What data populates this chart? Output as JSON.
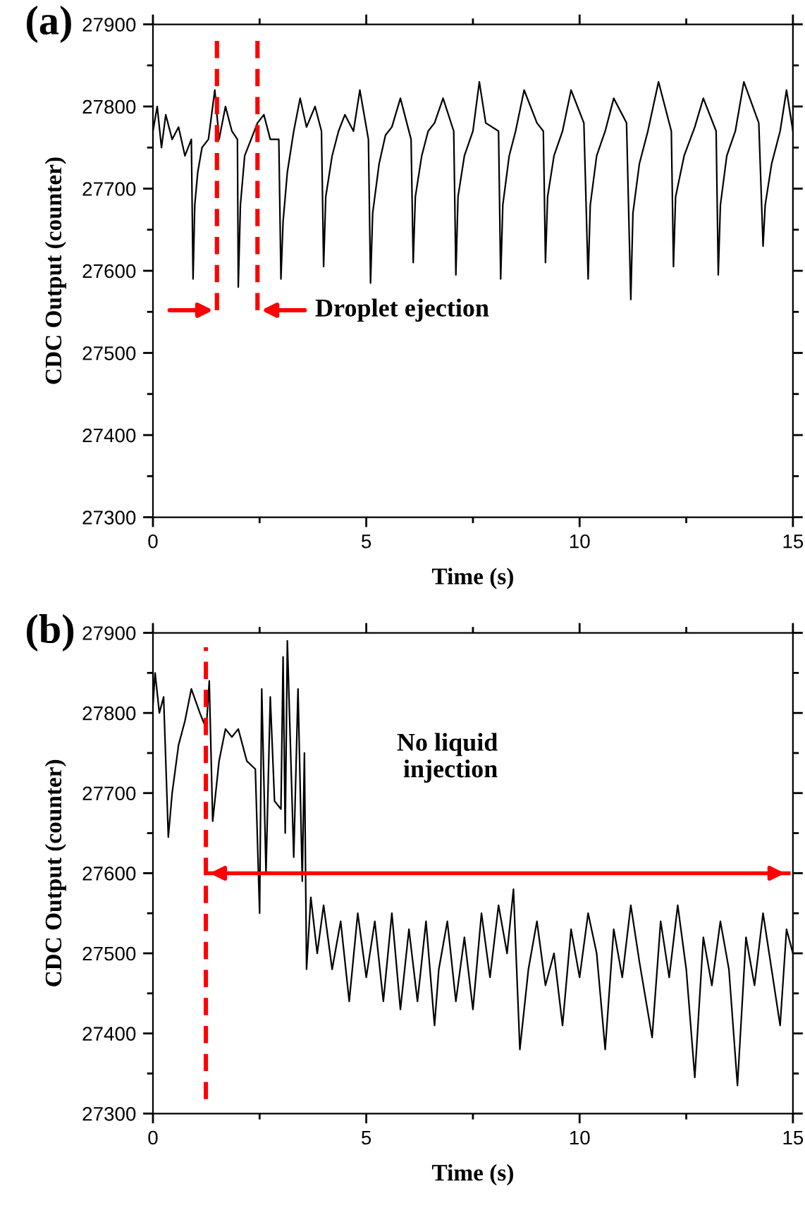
{
  "chart_data": [
    {
      "type": "line",
      "title": "(a)",
      "xlabel": "Time (s)",
      "ylabel": "CDC Output (counter)",
      "xlim": [
        0,
        15
      ],
      "ylim": [
        27300,
        27900
      ],
      "xticks": [
        0,
        {
          "value": 2.5,
          "label": null
        },
        5,
        {
          "value": 7.5,
          "label": null
        },
        10,
        {
          "value": 12.5,
          "label": null
        },
        15
      ],
      "yticks": [
        27300,
        {
          "value": 27350,
          "label": null
        },
        27400,
        {
          "value": 27450,
          "label": null
        },
        27500,
        {
          "value": 27550,
          "label": null
        },
        27600,
        {
          "value": 27650,
          "label": null
        },
        27700,
        {
          "value": 27750,
          "label": null
        },
        27800,
        {
          "value": 27850,
          "label": null
        },
        27900
      ],
      "grid": false,
      "legend": false,
      "series": [
        {
          "color": "#000000",
          "x": [
            0,
            0.1,
            0.2,
            0.3,
            0.45,
            0.6,
            0.75,
            0.9,
            0.94,
            0.98,
            1.05,
            1.15,
            1.3,
            1.45,
            1.55,
            1.7,
            1.85,
            1.98,
            2.0,
            2.05,
            2.15,
            2.3,
            2.45,
            2.6,
            2.75,
            2.95,
            3.0,
            3.05,
            3.15,
            3.3,
            3.45,
            3.6,
            3.8,
            3.95,
            4.0,
            4.05,
            4.2,
            4.35,
            4.5,
            4.7,
            4.85,
            5.05,
            5.1,
            5.15,
            5.3,
            5.45,
            5.6,
            5.8,
            6.05,
            6.1,
            6.15,
            6.3,
            6.45,
            6.6,
            6.8,
            7.05,
            7.1,
            7.15,
            7.3,
            7.5,
            7.65,
            7.8,
            8.1,
            8.15,
            8.2,
            8.35,
            8.5,
            8.7,
            9.0,
            9.15,
            9.2,
            9.25,
            9.4,
            9.6,
            9.8,
            10.1,
            10.2,
            10.25,
            10.4,
            10.6,
            10.8,
            11.1,
            11.2,
            11.25,
            11.4,
            11.6,
            11.85,
            12.15,
            12.2,
            12.25,
            12.45,
            12.7,
            12.9,
            13.2,
            13.25,
            13.3,
            13.45,
            13.65,
            13.85,
            14.2,
            14.3,
            14.35,
            14.5,
            14.7,
            14.85,
            15
          ],
          "values": [
            27770,
            27800,
            27750,
            27790,
            27760,
            27775,
            27740,
            27760,
            27590,
            27680,
            27720,
            27750,
            27760,
            27820,
            27760,
            27800,
            27770,
            27760,
            27580,
            27680,
            27740,
            27760,
            27780,
            27790,
            27760,
            27760,
            27590,
            27660,
            27720,
            27770,
            27810,
            27775,
            27800,
            27770,
            27605,
            27690,
            27740,
            27770,
            27790,
            27770,
            27820,
            27760,
            27585,
            27670,
            27730,
            27765,
            27775,
            27810,
            27760,
            27610,
            27690,
            27740,
            27770,
            27780,
            27810,
            27770,
            27595,
            27690,
            27740,
            27770,
            27830,
            27780,
            27770,
            27590,
            27680,
            27740,
            27770,
            27820,
            27780,
            27770,
            27610,
            27690,
            27740,
            27770,
            27820,
            27780,
            27590,
            27680,
            27740,
            27770,
            27810,
            27780,
            27565,
            27670,
            27730,
            27770,
            27830,
            27770,
            27605,
            27690,
            27740,
            27775,
            27810,
            27770,
            27595,
            27680,
            27740,
            27770,
            27830,
            27780,
            27630,
            27680,
            27730,
            27770,
            27820,
            27770
          ]
        }
      ],
      "ref_lines": [
        {
          "axis": "x",
          "value": 1.5,
          "color": "#ff0000",
          "line_style": "dashed"
        },
        {
          "axis": "x",
          "value": 2.45,
          "color": "#ff0000",
          "line_style": "dashed"
        }
      ],
      "annotations": [
        "Droplet ejection"
      ]
    },
    {
      "type": "line",
      "title": "(b)",
      "xlabel": "Time (s)",
      "ylabel": "CDC Output (counter)",
      "xlim": [
        0,
        15
      ],
      "ylim": [
        27300,
        27900
      ],
      "xticks": [
        0,
        {
          "value": 2.5,
          "label": null
        },
        5,
        {
          "value": 7.5,
          "label": null
        },
        10,
        {
          "value": 12.5,
          "label": null
        },
        15
      ],
      "yticks": [
        27300,
        {
          "value": 27350,
          "label": null
        },
        27400,
        {
          "value": 27450,
          "label": null
        },
        27500,
        {
          "value": 27550,
          "label": null
        },
        27600,
        {
          "value": 27650,
          "label": null
        },
        27700,
        {
          "value": 27750,
          "label": null
        },
        27800,
        {
          "value": 27850,
          "label": null
        },
        27900
      ],
      "grid": false,
      "legend": false,
      "series": [
        {
          "color": "#000000",
          "x": [
            0,
            0.05,
            0.15,
            0.25,
            0.36,
            0.45,
            0.6,
            0.75,
            0.9,
            1.1,
            1.25,
            1.32,
            1.4,
            1.55,
            1.7,
            1.85,
            2.0,
            2.2,
            2.4,
            2.5,
            2.55,
            2.65,
            2.75,
            2.85,
            3.0,
            3.05,
            3.1,
            3.15,
            3.3,
            3.4,
            3.5,
            3.55,
            3.6,
            3.7,
            3.85,
            4.0,
            4.2,
            4.4,
            4.6,
            4.8,
            5.0,
            5.2,
            5.4,
            5.6,
            5.8,
            6.0,
            6.2,
            6.4,
            6.6,
            6.7,
            6.9,
            7.1,
            7.3,
            7.5,
            7.7,
            7.9,
            8.1,
            8.3,
            8.45,
            8.6,
            8.8,
            9.0,
            9.2,
            9.4,
            9.6,
            9.8,
            10.0,
            10.2,
            10.4,
            10.6,
            10.8,
            11.0,
            11.2,
            11.4,
            11.7,
            11.9,
            12.1,
            12.3,
            12.5,
            12.7,
            12.9,
            13.1,
            13.3,
            13.5,
            13.7,
            13.9,
            14.1,
            14.3,
            14.5,
            14.7,
            14.85,
            15
          ],
          "values": [
            27810,
            27850,
            27800,
            27820,
            27645,
            27700,
            27760,
            27790,
            27830,
            27800,
            27780,
            27840,
            27665,
            27740,
            27780,
            27770,
            27780,
            27740,
            27730,
            27550,
            27830,
            27600,
            27820,
            27690,
            27680,
            27870,
            27650,
            27890,
            27620,
            27830,
            27590,
            27750,
            27480,
            27570,
            27500,
            27560,
            27480,
            27540,
            27440,
            27550,
            27470,
            27540,
            27440,
            27550,
            27430,
            27530,
            27440,
            27540,
            27410,
            27480,
            27540,
            27440,
            27520,
            27430,
            27550,
            27470,
            27560,
            27500,
            27580,
            27380,
            27480,
            27540,
            27460,
            27500,
            27410,
            27530,
            27470,
            27550,
            27500,
            27380,
            27530,
            27470,
            27560,
            27490,
            27395,
            27540,
            27470,
            27560,
            27480,
            27345,
            27520,
            27460,
            27540,
            27480,
            27335,
            27520,
            27460,
            27550,
            27480,
            27410,
            27530,
            27500
          ]
        },
        {
          "type": "line",
          "color": "#ff0000",
          "x": [
            1.24,
            14.9
          ],
          "values": [
            27600,
            27600
          ]
        }
      ],
      "ref_lines": [
        {
          "axis": "x",
          "value": 1.24,
          "color": "#ff0000",
          "line_style": "dashed"
        }
      ],
      "annotations": [
        "No liquid\n injection"
      ]
    }
  ]
}
